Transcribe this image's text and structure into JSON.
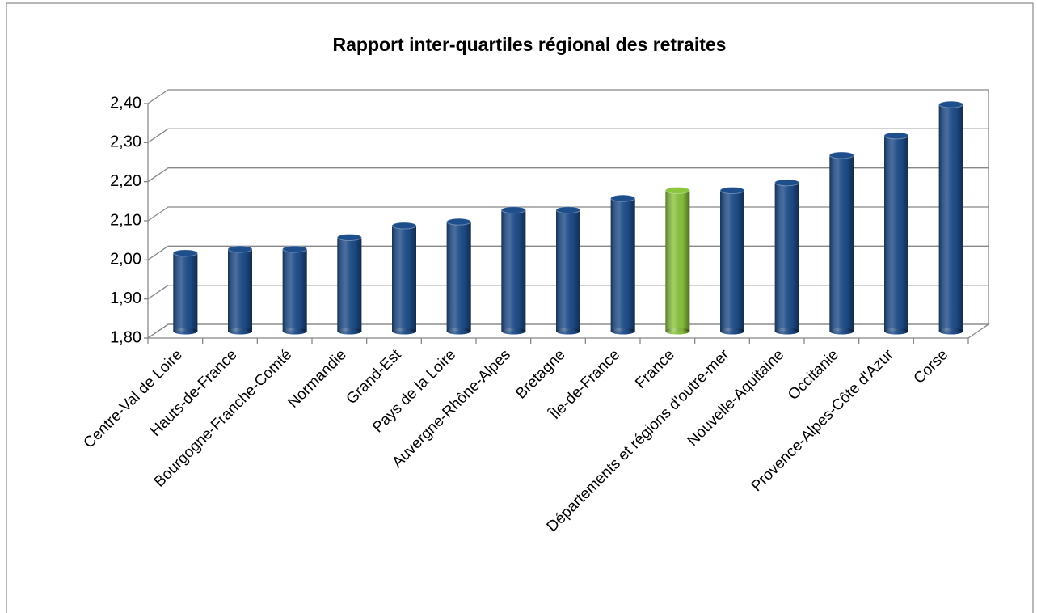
{
  "chart_data": {
    "type": "bar",
    "title": "Rapport inter-quartiles régional des retraites",
    "categories": [
      "Centre-Val de Loire",
      "Hauts-de-France",
      "Bourgogne-Franche-Comté",
      "Normandie",
      "Grand-Est",
      "Pays de la Loire",
      "Auvergne-Rhône-Alpes",
      "Bretagne",
      "Île-de-France",
      "France",
      "Départements et régions d'outre-mer",
      "Nouvelle-Aquitaine",
      "Occitanie",
      "Provence-Alpes-Côte d'Azur",
      "Corse"
    ],
    "values": [
      2.0,
      2.01,
      2.01,
      2.04,
      2.07,
      2.08,
      2.11,
      2.11,
      2.14,
      2.16,
      2.16,
      2.18,
      2.25,
      2.3,
      2.38
    ],
    "colors": [
      "#1f4e8c",
      "#1f4e8c",
      "#1f4e8c",
      "#1f4e8c",
      "#1f4e8c",
      "#1f4e8c",
      "#1f4e8c",
      "#1f4e8c",
      "#1f4e8c",
      "#8cc63f",
      "#1f4e8c",
      "#1f4e8c",
      "#1f4e8c",
      "#1f4e8c",
      "#1f4e8c"
    ],
    "ylim": [
      1.8,
      2.4
    ],
    "yticks": [
      {
        "value": 1.8,
        "label": "1,80"
      },
      {
        "value": 1.9,
        "label": "1,90"
      },
      {
        "value": 2.0,
        "label": "2,00"
      },
      {
        "value": 2.1,
        "label": "2,10"
      },
      {
        "value": 2.2,
        "label": "2,20"
      },
      {
        "value": 2.3,
        "label": "2,30"
      },
      {
        "value": 2.4,
        "label": "2,40"
      }
    ],
    "grid": true
  }
}
